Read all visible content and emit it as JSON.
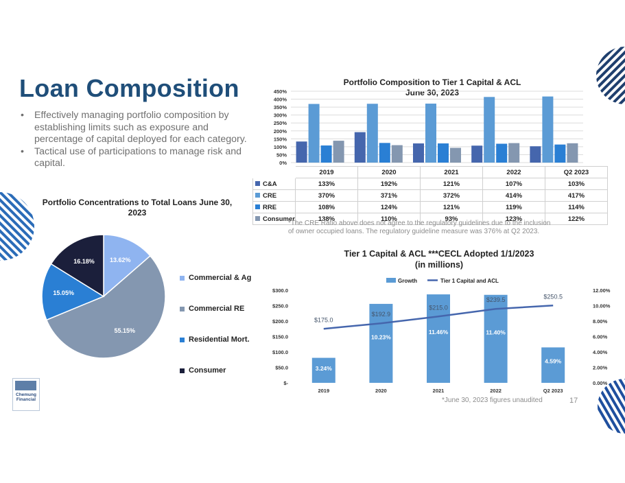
{
  "title": "Loan Composition",
  "bullets": [
    "Effectively managing portfolio composition by establishing limits such as exposure and percentage of capital deployed for each category.",
    "Tactical use of participations to manage risk and capital."
  ],
  "page_number": "17",
  "logo": {
    "line1": "Chemung",
    "line2": "Financial"
  },
  "colors": {
    "title": "#1f4e79",
    "ca": "#4566ad",
    "cre": "#5b9bd5",
    "rre": "#2a7fd4",
    "consumer": "#8497b0",
    "growth": "#5b9bd5",
    "line": "#4566ad",
    "pie_commercial_ag": "#8fb4f0",
    "pie_commercial_re": "#8497b0",
    "pie_residential": "#2a7fd4",
    "pie_consumer": "#1b1f3b"
  },
  "cre_note": "*The CRE Ratio above does not agree to the regulatory guidelines due to the inclusion of owner occupied loans. The regulatory guideline measure was 376% at Q2 2023.",
  "unaudited_note": "*June 30, 2023 figures unaudited",
  "chart_data": [
    {
      "type": "bar",
      "title": "Portfolio Composition to Tier 1 Capital & ACL",
      "subtitle": "June 30, 2023",
      "categories": [
        "2019",
        "2020",
        "2021",
        "2022",
        "Q2 2023"
      ],
      "ylim": [
        0,
        450
      ],
      "yticks": [
        "0%",
        "50%",
        "100%",
        "150%",
        "200%",
        "250%",
        "300%",
        "350%",
        "400%",
        "450%"
      ],
      "grid": true,
      "series": [
        {
          "name": "C&A",
          "values": [
            133,
            192,
            121,
            107,
            103
          ],
          "labels": [
            "133%",
            "192%",
            "121%",
            "107%",
            "103%"
          ]
        },
        {
          "name": "CRE",
          "values": [
            370,
            371,
            372,
            414,
            417
          ],
          "labels": [
            "370%",
            "371%",
            "372%",
            "414%",
            "417%"
          ]
        },
        {
          "name": "RRE",
          "values": [
            108,
            124,
            121,
            119,
            114
          ],
          "labels": [
            "108%",
            "124%",
            "121%",
            "119%",
            "114%"
          ]
        },
        {
          "name": "Consumer",
          "values": [
            138,
            110,
            93,
            123,
            122
          ],
          "labels": [
            "138%",
            "110%",
            "93%",
            "123%",
            "122%"
          ]
        }
      ]
    },
    {
      "type": "pie",
      "title": "Portfolio Concentrations to Total Loans June 30, 2023",
      "legend": "right",
      "slices": [
        {
          "name": "Commercial & Ag",
          "value": 13.62,
          "label": "13.62%"
        },
        {
          "name": "Commercial RE",
          "value": 55.15,
          "label": "55.15%"
        },
        {
          "name": "Residential Mort.",
          "value": 15.05,
          "label": "15.05%"
        },
        {
          "name": "Consumer",
          "value": 16.18,
          "label": "16.18%"
        }
      ]
    },
    {
      "type": "bar",
      "title": "Tier 1 Capital & ACL ***CECL Adopted 1/1/2023",
      "subtitle": "(in millions)",
      "categories": [
        "2019",
        "2020",
        "2021",
        "2022",
        "Q2 2023"
      ],
      "legend": "top",
      "y_left": {
        "lim": [
          0,
          300
        ],
        "ticks": [
          "$-",
          "$50.0",
          "$100.0",
          "$150.0",
          "$200.0",
          "$250.0",
          "$300.0"
        ]
      },
      "y_right": {
        "lim": [
          0,
          12
        ],
        "ticks": [
          "0.00%",
          "2.00%",
          "4.00%",
          "6.00%",
          "8.00%",
          "10.00%",
          "12.00%"
        ]
      },
      "series": [
        {
          "name": "Growth",
          "axis": "right",
          "values": [
            3.24,
            10.23,
            11.46,
            11.4,
            4.59
          ],
          "labels": [
            "3.24%",
            "10.23%",
            "11.46%",
            "11.40%",
            "4.59%"
          ]
        },
        {
          "name": "Tier 1 Capital and ACL",
          "axis": "left",
          "type": "line",
          "values": [
            175.0,
            192.9,
            215.0,
            239.5,
            250.5
          ],
          "labels": [
            "$175.0",
            "$192.9",
            "$215.0",
            "$239.5",
            "$250.5"
          ]
        }
      ]
    }
  ]
}
